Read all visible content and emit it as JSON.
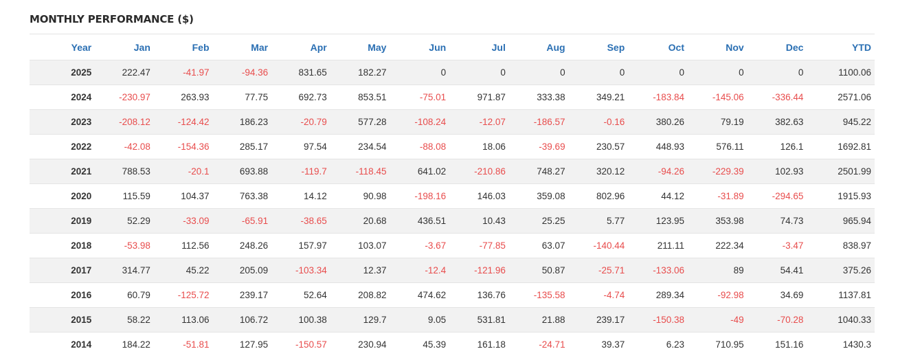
{
  "title": "MONTHLY PERFORMANCE ($)",
  "colors": {
    "header": "#2a6fb3",
    "negative": "#e84c4c",
    "row_alt": "#f2f2f2"
  },
  "headers": [
    "Year",
    "Jan",
    "Feb",
    "Mar",
    "Apr",
    "May",
    "Jun",
    "Jul",
    "Aug",
    "Sep",
    "Oct",
    "Nov",
    "Dec",
    "YTD"
  ],
  "rows": [
    [
      "2025",
      "222.47",
      "-41.97",
      "-94.36",
      "831.65",
      "182.27",
      "0",
      "0",
      "0",
      "0",
      "0",
      "0",
      "0",
      "1100.06"
    ],
    [
      "2024",
      "-230.97",
      "263.93",
      "77.75",
      "692.73",
      "853.51",
      "-75.01",
      "971.87",
      "333.38",
      "349.21",
      "-183.84",
      "-145.06",
      "-336.44",
      "2571.06"
    ],
    [
      "2023",
      "-208.12",
      "-124.42",
      "186.23",
      "-20.79",
      "577.28",
      "-108.24",
      "-12.07",
      "-186.57",
      "-0.16",
      "380.26",
      "79.19",
      "382.63",
      "945.22"
    ],
    [
      "2022",
      "-42.08",
      "-154.36",
      "285.17",
      "97.54",
      "234.54",
      "-88.08",
      "18.06",
      "-39.69",
      "230.57",
      "448.93",
      "576.11",
      "126.1",
      "1692.81"
    ],
    [
      "2021",
      "788.53",
      "-20.1",
      "693.88",
      "-119.7",
      "-118.45",
      "641.02",
      "-210.86",
      "748.27",
      "320.12",
      "-94.26",
      "-229.39",
      "102.93",
      "2501.99"
    ],
    [
      "2020",
      "115.59",
      "104.37",
      "763.38",
      "14.12",
      "90.98",
      "-198.16",
      "146.03",
      "359.08",
      "802.96",
      "44.12",
      "-31.89",
      "-294.65",
      "1915.93"
    ],
    [
      "2019",
      "52.29",
      "-33.09",
      "-65.91",
      "-38.65",
      "20.68",
      "436.51",
      "10.43",
      "25.25",
      "5.77",
      "123.95",
      "353.98",
      "74.73",
      "965.94"
    ],
    [
      "2018",
      "-53.98",
      "112.56",
      "248.26",
      "157.97",
      "103.07",
      "-3.67",
      "-77.85",
      "63.07",
      "-140.44",
      "211.11",
      "222.34",
      "-3.47",
      "838.97"
    ],
    [
      "2017",
      "314.77",
      "45.22",
      "205.09",
      "-103.34",
      "12.37",
      "-12.4",
      "-121.96",
      "50.87",
      "-25.71",
      "-133.06",
      "89",
      "54.41",
      "375.26"
    ],
    [
      "2016",
      "60.79",
      "-125.72",
      "239.17",
      "52.64",
      "208.82",
      "474.62",
      "136.76",
      "-135.58",
      "-4.74",
      "289.34",
      "-92.98",
      "34.69",
      "1137.81"
    ],
    [
      "2015",
      "58.22",
      "113.06",
      "106.72",
      "100.38",
      "129.7",
      "9.05",
      "531.81",
      "21.88",
      "239.17",
      "-150.38",
      "-49",
      "-70.28",
      "1040.33"
    ],
    [
      "2014",
      "184.22",
      "-51.81",
      "127.95",
      "-150.57",
      "230.94",
      "45.39",
      "161.18",
      "-24.71",
      "39.37",
      "6.23",
      "710.95",
      "151.16",
      "1430.3"
    ]
  ]
}
